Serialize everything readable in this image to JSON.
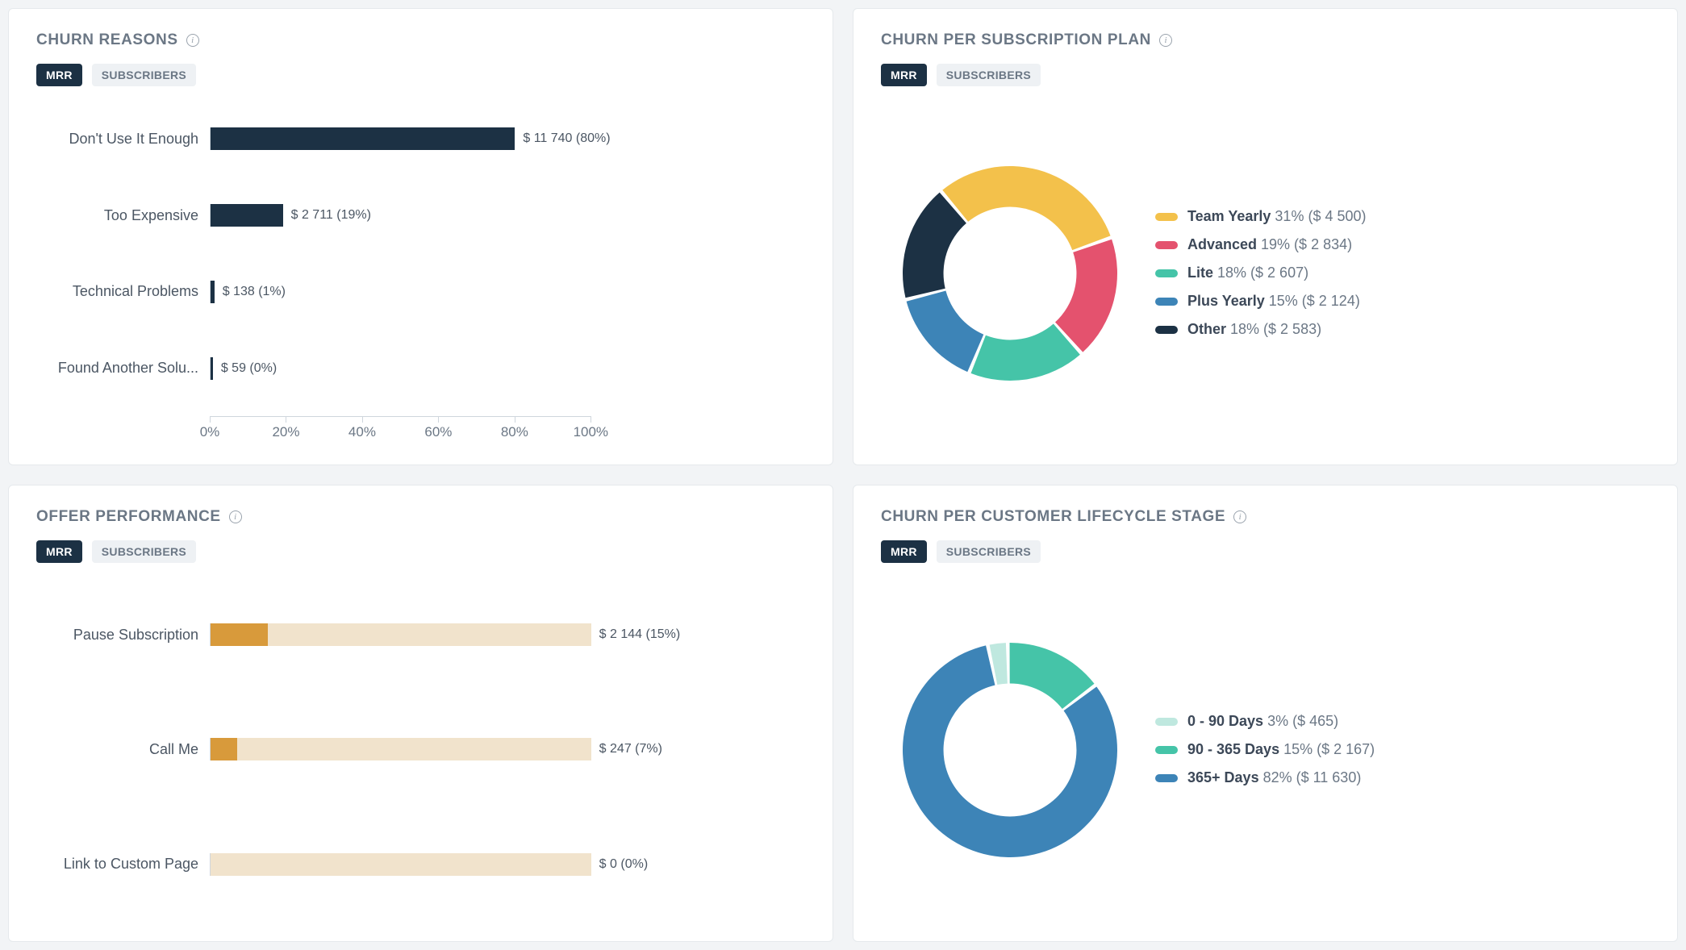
{
  "colors": {
    "card_bg": "#ffffff",
    "page_bg": "#f2f4f6",
    "border": "#e5e9ec",
    "title": "#6b7785",
    "text": "#4b5663",
    "tab_active_bg": "#1c3144",
    "tab_active_fg": "#ffffff",
    "tab_inactive_bg": "#eef1f4",
    "tab_inactive_fg": "#6b7785"
  },
  "tabs": {
    "mrr": "MRR",
    "subscribers": "SUBSCRIBERS"
  },
  "churn_reasons": {
    "title": "CHURN REASONS",
    "type": "hbar",
    "bar_color": "#1c3144",
    "bar_bg_color": null,
    "track_width_pct": 64,
    "xticks": [
      0,
      20,
      40,
      60,
      80,
      100
    ],
    "xtick_suffix": "%",
    "rows": [
      {
        "label": "Don't Use It Enough",
        "pct": 80,
        "value_text": "$ 11 740 (80%)"
      },
      {
        "label": "Too Expensive",
        "pct": 19,
        "value_text": "$ 2 711 (19%)"
      },
      {
        "label": "Technical Problems",
        "pct": 1,
        "value_text": "$ 138 (1%)"
      },
      {
        "label": "Found Another Solu...",
        "pct": 0.4,
        "value_text": "$ 59 (0%)"
      }
    ]
  },
  "churn_plan": {
    "title": "CHURN PER SUBSCRIPTION PLAN",
    "type": "donut",
    "inner_radius_ratio": 0.62,
    "gap_deg": 2,
    "start_angle_deg": -40,
    "slices": [
      {
        "name": "Team Yearly",
        "pct": 31,
        "amount": "$ 4 500",
        "color": "#f3c14b"
      },
      {
        "name": "Advanced",
        "pct": 19,
        "amount": "$ 2 834",
        "color": "#e4526e"
      },
      {
        "name": "Lite",
        "pct": 18,
        "amount": "$ 2 607",
        "color": "#45c4a8"
      },
      {
        "name": "Plus Yearly",
        "pct": 15,
        "amount": "$ 2 124",
        "color": "#3d84b7"
      },
      {
        "name": "Other",
        "pct": 18,
        "amount": "$ 2 583",
        "color": "#1c3144"
      }
    ]
  },
  "offer_perf": {
    "title": "OFFER PERFORMANCE",
    "type": "hbar",
    "bar_color": "#d89a3b",
    "bar_bg_color": "#f1e3cc",
    "track_width_pct": 64,
    "xticks": null,
    "rows": [
      {
        "label": "Pause Subscription",
        "pct": 15,
        "value_text": "$ 2 144 (15%)"
      },
      {
        "label": "Call Me",
        "pct": 7,
        "value_text": "$ 247 (7%)"
      },
      {
        "label": "Link to Custom Page",
        "pct": 0,
        "value_text": "$ 0 (0%)"
      }
    ]
  },
  "churn_lifecycle": {
    "title": "CHURN PER CUSTOMER LIFECYCLE STAGE",
    "type": "donut",
    "inner_radius_ratio": 0.62,
    "gap_deg": 2,
    "start_angle_deg": -12,
    "slices": [
      {
        "name": "0 - 90 Days",
        "pct": 3,
        "amount": "$ 465",
        "color": "#bfe8df"
      },
      {
        "name": "90 - 365 Days",
        "pct": 15,
        "amount": "$ 2 167",
        "color": "#45c4a8"
      },
      {
        "name": "365+ Days",
        "pct": 82,
        "amount": "$ 11 630",
        "color": "#3d84b7"
      }
    ]
  }
}
